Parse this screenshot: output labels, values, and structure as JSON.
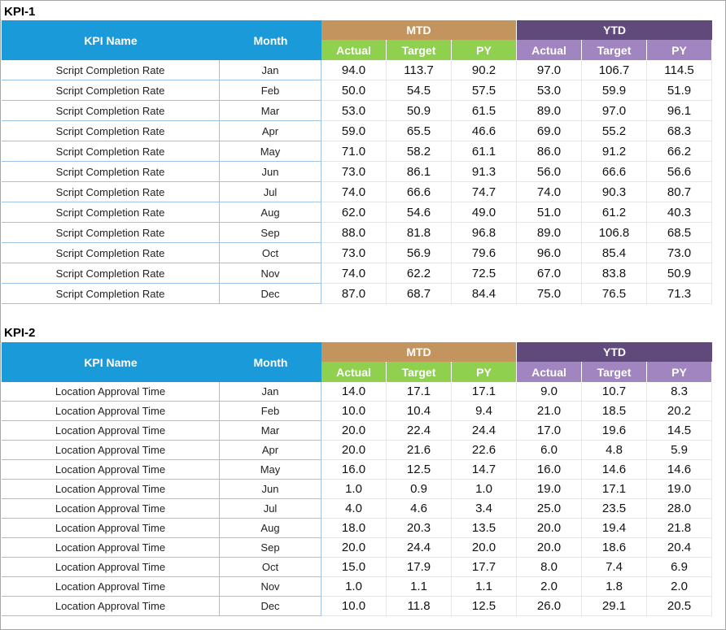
{
  "tables": [
    {
      "label": "KPI-1",
      "header": {
        "kpi_name": "KPI Name",
        "month": "Month",
        "mtd": "MTD",
        "ytd": "YTD",
        "sub": [
          "Actual",
          "Target",
          "PY",
          "Actual",
          "Target",
          "PY"
        ]
      },
      "rows": [
        [
          "Script Completion Rate",
          "Jan",
          "94.0",
          "113.7",
          "90.2",
          "97.0",
          "106.7",
          "114.5"
        ],
        [
          "Script Completion Rate",
          "Feb",
          "50.0",
          "54.5",
          "57.5",
          "53.0",
          "59.9",
          "51.9"
        ],
        [
          "Script Completion Rate",
          "Mar",
          "53.0",
          "50.9",
          "61.5",
          "89.0",
          "97.0",
          "96.1"
        ],
        [
          "Script Completion Rate",
          "Apr",
          "59.0",
          "65.5",
          "46.6",
          "69.0",
          "55.2",
          "68.3"
        ],
        [
          "Script Completion Rate",
          "May",
          "71.0",
          "58.2",
          "61.1",
          "86.0",
          "91.2",
          "66.2"
        ],
        [
          "Script Completion Rate",
          "Jun",
          "73.0",
          "86.1",
          "91.3",
          "56.0",
          "66.6",
          "56.6"
        ],
        [
          "Script Completion Rate",
          "Jul",
          "74.0",
          "66.6",
          "74.7",
          "74.0",
          "90.3",
          "80.7"
        ],
        [
          "Script Completion Rate",
          "Aug",
          "62.0",
          "54.6",
          "49.0",
          "51.0",
          "61.2",
          "40.3"
        ],
        [
          "Script Completion Rate",
          "Sep",
          "88.0",
          "81.8",
          "96.8",
          "89.0",
          "106.8",
          "68.5"
        ],
        [
          "Script Completion Rate",
          "Oct",
          "73.0",
          "56.9",
          "79.6",
          "96.0",
          "85.4",
          "73.0"
        ],
        [
          "Script Completion Rate",
          "Nov",
          "74.0",
          "62.2",
          "72.5",
          "67.0",
          "83.8",
          "50.9"
        ],
        [
          "Script Completion Rate",
          "Dec",
          "87.0",
          "68.7",
          "84.4",
          "75.0",
          "76.5",
          "71.3"
        ]
      ]
    },
    {
      "label": "KPI-2",
      "header": {
        "kpi_name": "KPI Name",
        "month": "Month",
        "mtd": "MTD",
        "ytd": "YTD",
        "sub": [
          "Actual",
          "Target",
          "PY",
          "Actual",
          "Target",
          "PY"
        ]
      },
      "rows": [
        [
          "Location Approval Time",
          "Jan",
          "14.0",
          "17.1",
          "17.1",
          "9.0",
          "10.7",
          "8.3"
        ],
        [
          "Location Approval Time",
          "Feb",
          "10.0",
          "10.4",
          "9.4",
          "21.0",
          "18.5",
          "20.2"
        ],
        [
          "Location Approval Time",
          "Mar",
          "20.0",
          "22.4",
          "24.4",
          "17.0",
          "19.6",
          "14.5"
        ],
        [
          "Location Approval Time",
          "Apr",
          "20.0",
          "21.6",
          "22.6",
          "6.0",
          "4.8",
          "5.9"
        ],
        [
          "Location Approval Time",
          "May",
          "16.0",
          "12.5",
          "14.7",
          "16.0",
          "14.6",
          "14.6"
        ],
        [
          "Location Approval Time",
          "Jun",
          "1.0",
          "0.9",
          "1.0",
          "19.0",
          "17.1",
          "19.0"
        ],
        [
          "Location Approval Time",
          "Jul",
          "4.0",
          "4.6",
          "3.4",
          "25.0",
          "23.5",
          "28.0"
        ],
        [
          "Location Approval Time",
          "Aug",
          "18.0",
          "20.3",
          "13.5",
          "20.0",
          "19.4",
          "21.8"
        ],
        [
          "Location Approval Time",
          "Sep",
          "20.0",
          "24.4",
          "20.0",
          "20.0",
          "18.6",
          "20.4"
        ],
        [
          "Location Approval Time",
          "Oct",
          "15.0",
          "17.9",
          "17.7",
          "8.0",
          "7.4",
          "6.9"
        ],
        [
          "Location Approval Time",
          "Nov",
          "1.0",
          "1.1",
          "1.1",
          "2.0",
          "1.8",
          "2.0"
        ],
        [
          "Location Approval Time",
          "Dec",
          "10.0",
          "11.8",
          "12.5",
          "26.0",
          "29.1",
          "20.5"
        ]
      ]
    }
  ]
}
